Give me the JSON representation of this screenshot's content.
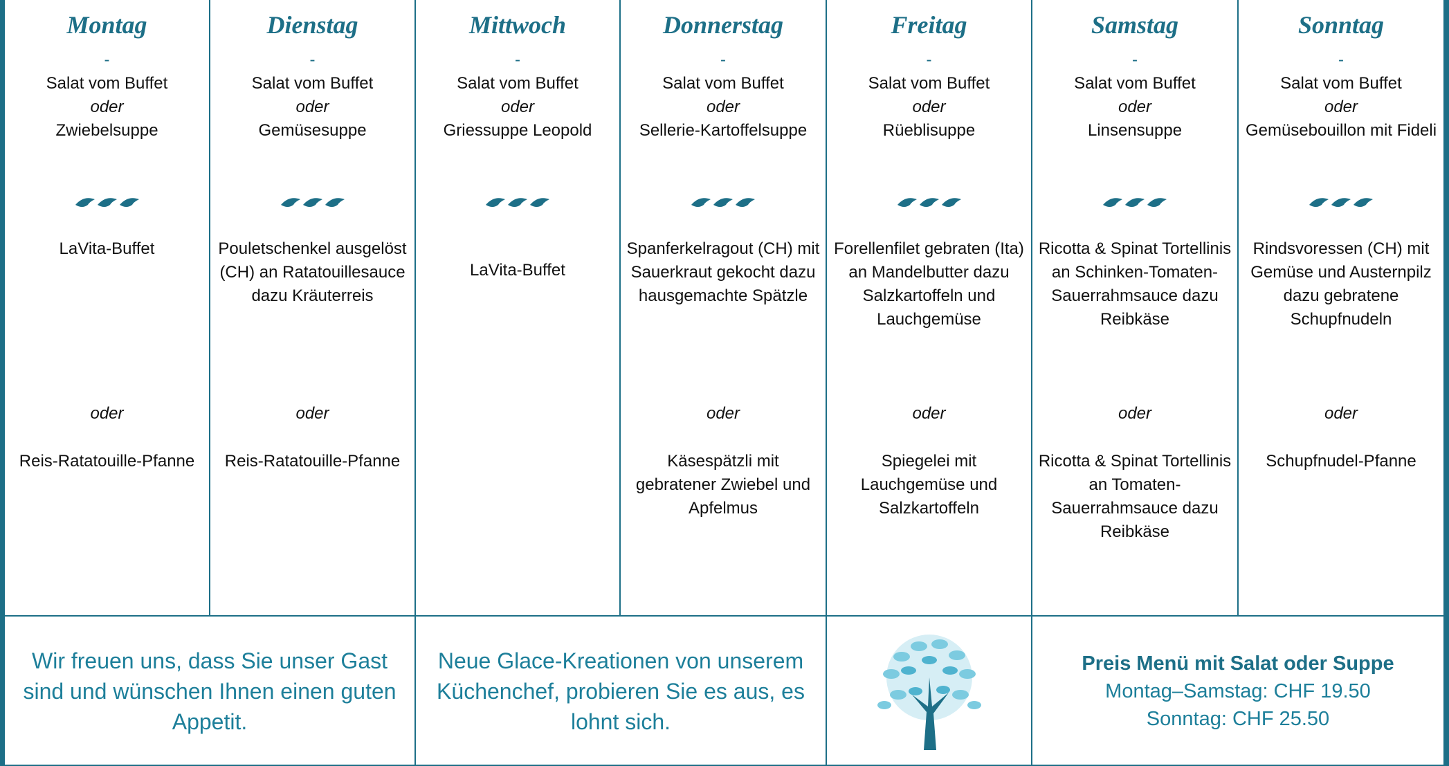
{
  "days": [
    {
      "name": "Montag",
      "dash": "-",
      "starter": [
        "Salat vom Buffet",
        "oder",
        "Zwiebelsuppe"
      ],
      "main1": "LaVita-Buffet",
      "oder": "oder",
      "main2": "Reis-Ratatouille-Pfanne"
    },
    {
      "name": "Dienstag",
      "dash": "-",
      "starter": [
        "Salat vom Buffet",
        "oder",
        "Gemüsesuppe"
      ],
      "main1": "Pouletschenkel ausgelöst (CH) an Ratatouillesauce dazu Kräuterreis",
      "oder": "oder",
      "main2": "Reis-Ratatouille-Pfanne"
    },
    {
      "name": "Mittwoch",
      "dash": "-",
      "starter": [
        "Salat vom Buffet",
        "oder",
        "Griessuppe Leopold"
      ],
      "main1": "LaVita-Buffet"
    },
    {
      "name": "Donnerstag",
      "dash": "-",
      "starter": [
        "Salat vom Buffet",
        "oder",
        "Sellerie-Kartoffelsuppe"
      ],
      "main1": "Spanferkelragout (CH) mit Sauerkraut gekocht dazu hausgemachte Spätzle",
      "oder": "oder",
      "main2": "Käsespätzli mit gebratener Zwiebel und Apfelmus"
    },
    {
      "name": "Freitag",
      "dash": "-",
      "starter": [
        "Salat vom Buffet",
        "oder",
        "Rüeblisuppe"
      ],
      "main1": "Forellenfilet gebraten (Ita) an Mandelbutter dazu Salzkartoffeln und Lauchgemüse",
      "oder": "oder",
      "main2": "Spiegelei mit Lauchgemüse und Salzkartoffeln"
    },
    {
      "name": "Samstag",
      "dash": "-",
      "starter": [
        "Salat vom Buffet",
        "oder",
        "Linsensuppe"
      ],
      "main1": "Ricotta & Spinat Tortellinis an Schinken-Tomaten-Sauerrahmsauce dazu Reibkäse",
      "oder": "oder",
      "main2": "Ricotta & Spinat Tortellinis an Tomaten-Sauerrahmsauce dazu Reibkäse"
    },
    {
      "name": "Sonntag",
      "dash": "-",
      "starter": [
        "Salat vom Buffet",
        "oder",
        "Gemüsebouillon mit Fideli"
      ],
      "main1": "Rindsvoressen (CH) mit Gemüse und Austernpilz dazu gebratene Schupfnudeln",
      "oder": "oder",
      "main2": "Schupfnudel-Pfanne"
    }
  ],
  "footer": {
    "welcome": "Wir freuen uns, dass Sie unser Gast sind und wünschen Ihnen einen guten Appetit.",
    "news": "Neue Glace-Kreationen von unserem Küchenchef, probieren Sie es aus, es lohnt sich.",
    "price_title": "Preis Menü mit Salat oder Suppe",
    "price_weekday": "Montag–Samstag: CHF 19.50",
    "price_sunday": "Sonntag: CHF 25.50"
  }
}
